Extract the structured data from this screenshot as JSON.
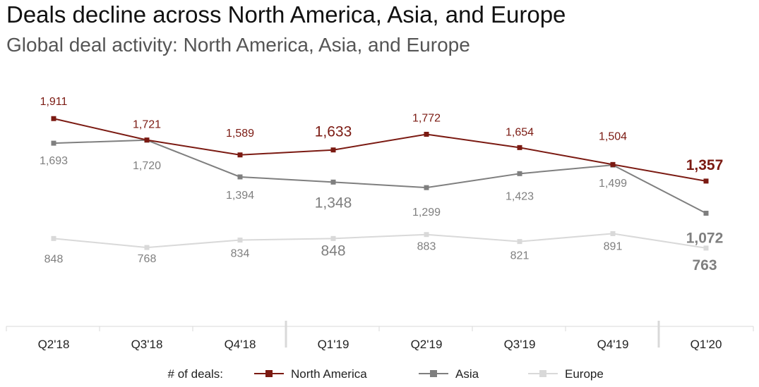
{
  "chart_data": {
    "type": "line",
    "title": "Deals decline across North America, Asia, and Europe",
    "subtitle": "Global deal activity: North America, Asia, and Europe",
    "categories": [
      "Q2'18",
      "Q3'18",
      "Q4'18",
      "Q1'19",
      "Q2'19",
      "Q3'19",
      "Q4'19",
      "Q1'20"
    ],
    "series": [
      {
        "name": "North America",
        "color": "#7B1A12",
        "values": [
          1911,
          1721,
          1589,
          1633,
          1772,
          1654,
          1504,
          1357
        ],
        "labels": [
          "1,911",
          "1,721",
          "1,589",
          "1,633",
          "1,772",
          "1,654",
          "1,504",
          "1,357"
        ]
      },
      {
        "name": "Asia",
        "color": "#7F7F7F",
        "values": [
          1693,
          1720,
          1394,
          1348,
          1299,
          1423,
          1499,
          1072
        ],
        "labels": [
          "1,693",
          "1,720",
          "1,394",
          "1,348",
          "1,299",
          "1,423",
          "1,499",
          "1,072"
        ]
      },
      {
        "name": "Europe",
        "color": "#D9D9D9",
        "label_color": "#7F7F7F",
        "values": [
          848,
          768,
          834,
          848,
          883,
          821,
          891,
          763
        ],
        "labels": [
          "848",
          "768",
          "834",
          "848",
          "883",
          "821",
          "891",
          "763"
        ]
      }
    ],
    "legend_title": "# of deals:",
    "legend_position": "bottom",
    "grid": false
  }
}
